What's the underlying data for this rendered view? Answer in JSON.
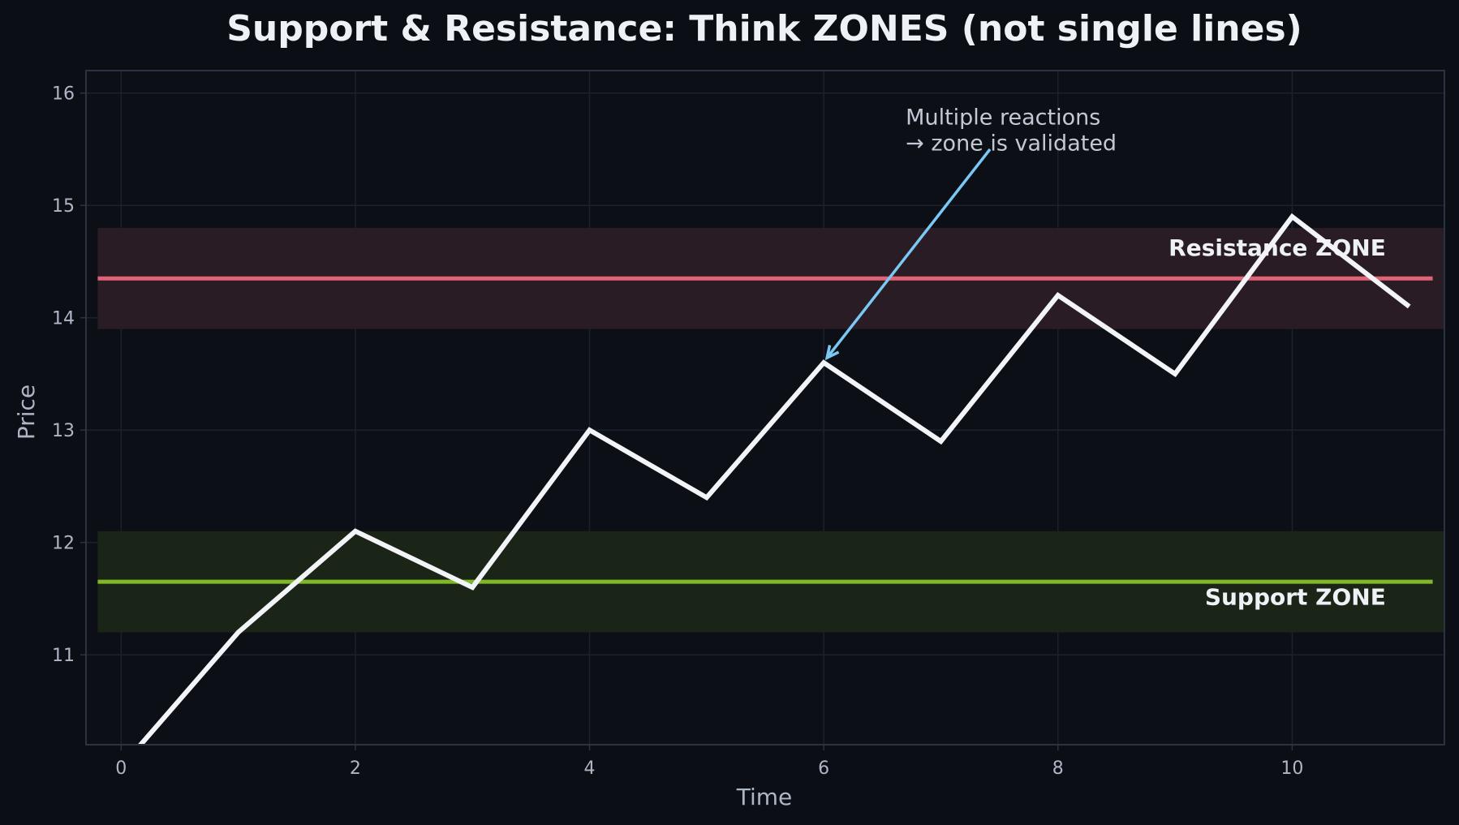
{
  "chart_data": {
    "type": "line",
    "title": "Support & Resistance: Think ZONES (not single lines)",
    "xlabel": "Time",
    "ylabel": "Price",
    "xlim": [
      -0.3,
      11.3
    ],
    "ylim": [
      10.2,
      16.2
    ],
    "x_ticks": [
      0,
      2,
      4,
      6,
      8,
      10
    ],
    "y_ticks": [
      11,
      12,
      13,
      14,
      15,
      16
    ],
    "grid": true,
    "series": [
      {
        "x": [
          0,
          1,
          2,
          3,
          4,
          5,
          6,
          7,
          8,
          9,
          10,
          11
        ],
        "values": [
          10.0,
          11.2,
          12.1,
          11.6,
          13.0,
          12.4,
          13.6,
          12.9,
          14.2,
          13.5,
          14.9,
          14.1
        ],
        "color": "#f2f4f7"
      }
    ],
    "zones": [
      {
        "label": "Resistance ZONE",
        "low": 13.9,
        "high": 14.8,
        "level": 14.35,
        "fill": "#2a1c25",
        "line_color": "#e06276"
      },
      {
        "label": "Support ZONE",
        "low": 11.2,
        "high": 12.1,
        "level": 11.65,
        "fill": "#1b2517",
        "line_color": "#7fb829"
      }
    ],
    "annotation": {
      "lines": [
        "Multiple reactions",
        "→ zone is validated"
      ],
      "target": [
        6,
        13.6
      ],
      "text_pos": [
        6.7,
        15.5
      ],
      "arrow_color": "#7ac8f5"
    }
  },
  "colors": {
    "background": "#0b0e14",
    "plot_background": "#0c1016",
    "frame": "#2b3342",
    "grid": "#1a2130"
  }
}
